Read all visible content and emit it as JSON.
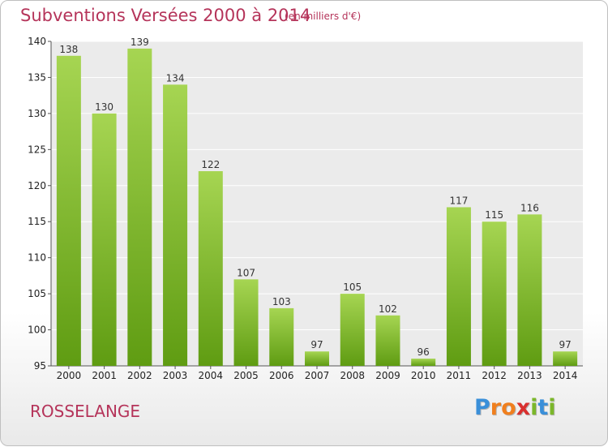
{
  "header": {
    "title": "Subventions Versées 2000 à 2014",
    "subtitle": "(en milliers d'€)"
  },
  "commune": "ROSSELANGE",
  "logo": {
    "text": "Proxiti",
    "letters": [
      "P",
      "r",
      "o",
      "x",
      "i",
      "t",
      "i"
    ],
    "letter_colors": [
      "#3a8fd9",
      "#f07f1e",
      "#f07f1e",
      "#d9302f",
      "#7bb72a",
      "#3a8fd9",
      "#7bb72a"
    ]
  },
  "chart_data": {
    "type": "bar",
    "categories": [
      "2000",
      "2001",
      "2002",
      "2003",
      "2004",
      "2005",
      "2006",
      "2007",
      "2008",
      "2009",
      "2010",
      "2011",
      "2012",
      "2013",
      "2014"
    ],
    "values": [
      138,
      130,
      139,
      134,
      122,
      107,
      103,
      97,
      105,
      102,
      96,
      117,
      115,
      116,
      97
    ],
    "title": "Subventions Versées 2000 à 2014",
    "subtitle": "(en milliers d'€)",
    "xlabel": "",
    "ylabel": "",
    "ylim": [
      95,
      140
    ],
    "yticks": [
      95,
      100,
      105,
      110,
      115,
      120,
      125,
      130,
      135,
      140
    ],
    "grid": true,
    "legend": "none",
    "colors": {
      "bar_top": "#a6d552",
      "bar_bottom": "#5f9c12",
      "plot_background": "#ebebeb",
      "grid": "#ffffff",
      "axis_text": "#222222",
      "title": "#b5345a"
    }
  }
}
